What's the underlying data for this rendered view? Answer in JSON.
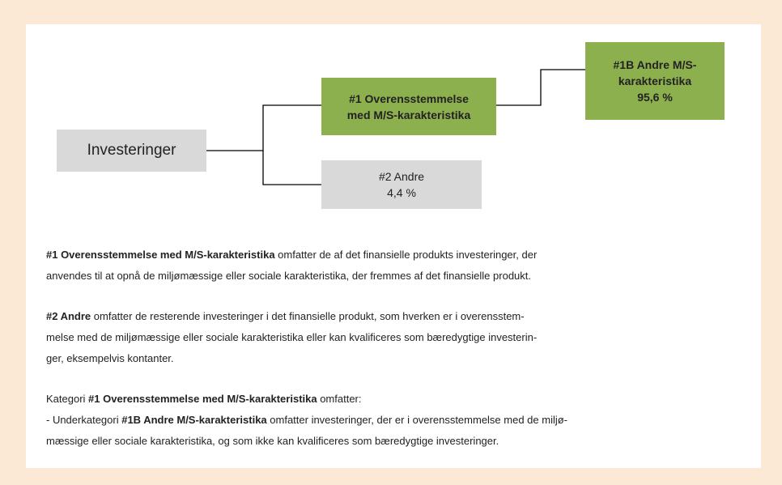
{
  "nodes": [
    {
      "lines": [
        "Investeringer"
      ]
    },
    {
      "lines": [
        "#1 Overensstemmelse",
        "med M/S-karakteristika"
      ]
    },
    {
      "lines": [
        "#1B Andre M/S-",
        "karakteristika",
        "95,6 %"
      ]
    },
    {
      "lines": [
        "#2 Andre",
        "4,4 %"
      ]
    }
  ],
  "paragraphs": [
    [
      [
        {
          "text": "#1 Overensstemmelse med M/S-karakteristika",
          "bold": true
        },
        {
          "text": " omfatter de af det finansielle produkts investeringer, der",
          "bold": false
        }
      ],
      [
        {
          "text": "anvendes til at opnå de miljømæssige eller sociale karakteristika, der fremmes af det finansielle produkt.",
          "bold": false
        }
      ]
    ],
    [
      [
        {
          "text": "#2 Andre",
          "bold": true
        },
        {
          "text": " omfatter de resterende investeringer i det finansielle produkt, som hverken er i overensstem-",
          "bold": false
        }
      ],
      [
        {
          "text": "melse med de miljømæssige eller sociale karakteristika eller kan kvalificeres som bæredygtige investerin-",
          "bold": false
        }
      ],
      [
        {
          "text": "ger, eksempelvis kontanter.",
          "bold": false
        }
      ]
    ],
    [
      [
        {
          "text": "Kategori ",
          "bold": false
        },
        {
          "text": "#1 Overensstemmelse med M/S-karakteristika",
          "bold": true
        },
        {
          "text": " omfatter:",
          "bold": false
        }
      ],
      [
        {
          "text": "- Underkategori ",
          "bold": false
        },
        {
          "text": "#1B Andre M/S-karakteristika",
          "bold": true
        },
        {
          "text": " omfatter investeringer, der er i overensstemmelse med de miljø-",
          "bold": false
        }
      ],
      [
        {
          "text": "mæssige eller sociale karakteristika, og som ikke kan kvalificeres som bæredygtige investeringer.",
          "bold": false
        }
      ]
    ]
  ]
}
